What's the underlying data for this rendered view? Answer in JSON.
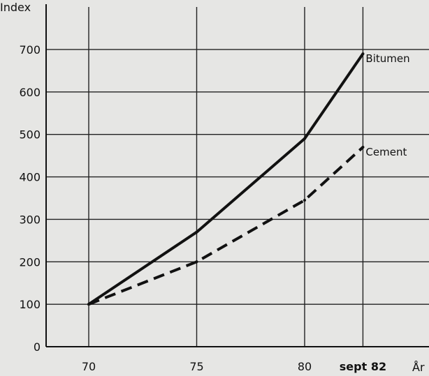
{
  "chart_data": {
    "type": "line",
    "ylabel": "Index",
    "xlabel": "År",
    "ylim": [
      0,
      700
    ],
    "yticks": [
      0,
      100,
      200,
      300,
      400,
      500,
      600,
      700
    ],
    "x_ticks": [
      {
        "value": 70,
        "label": "70"
      },
      {
        "value": 75,
        "label": "75"
      },
      {
        "value": 80,
        "label": "80"
      },
      {
        "value": 82.7,
        "label": "sept 82"
      }
    ],
    "grid": true,
    "series": [
      {
        "name": "Bitumen",
        "style": "solid",
        "points": [
          {
            "x": 70,
            "y": 100
          },
          {
            "x": 75,
            "y": 270
          },
          {
            "x": 80,
            "y": 490
          },
          {
            "x": 82.7,
            "y": 690
          }
        ]
      },
      {
        "name": "Cement",
        "style": "dashed",
        "points": [
          {
            "x": 70,
            "y": 100
          },
          {
            "x": 75,
            "y": 200
          },
          {
            "x": 80,
            "y": 345
          },
          {
            "x": 82.7,
            "y": 470
          }
        ]
      }
    ]
  }
}
